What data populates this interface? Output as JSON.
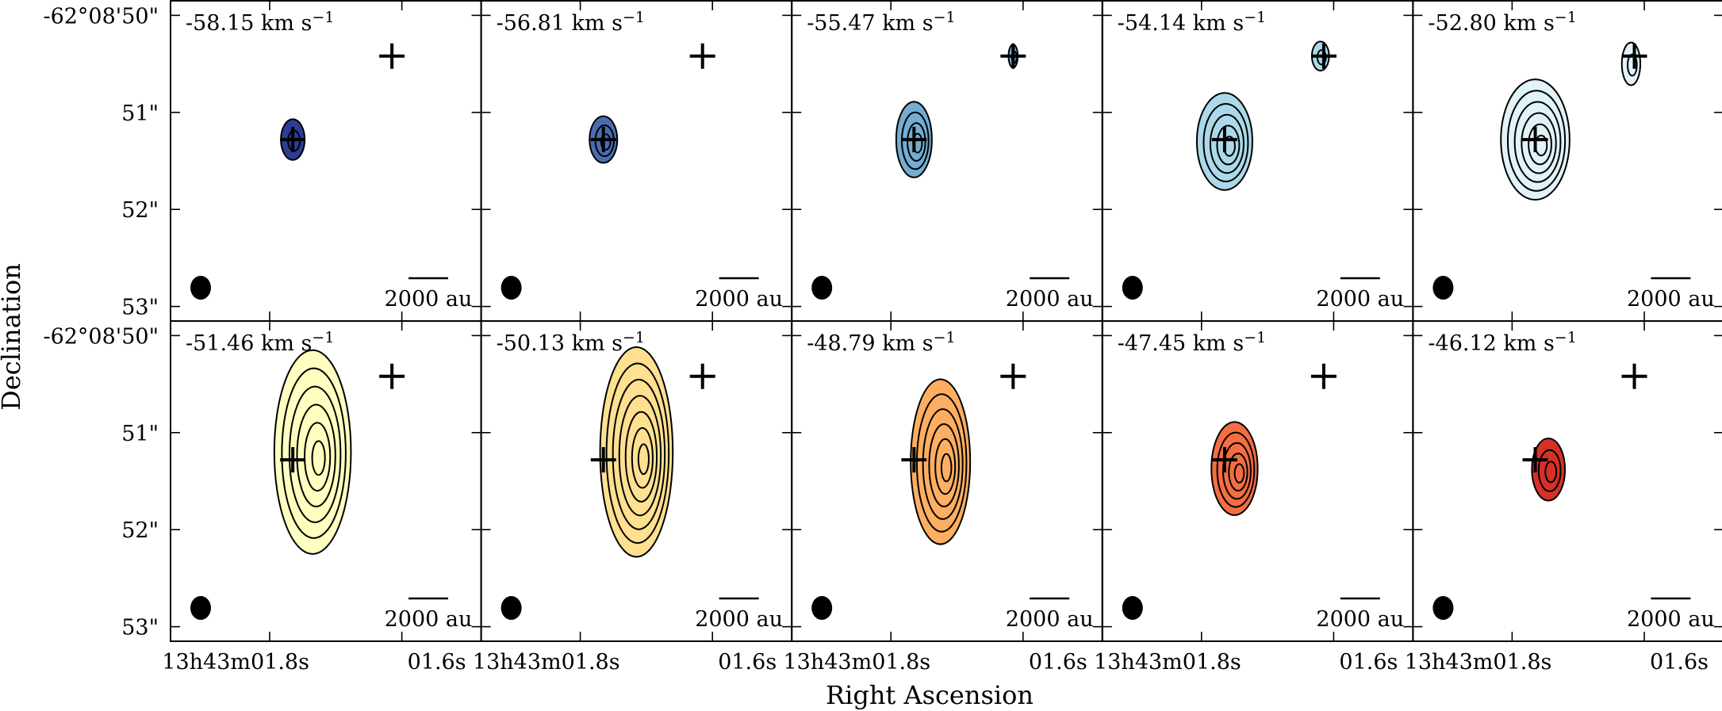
{
  "chart_data": {
    "type": "contour",
    "layout": {
      "rows": 2,
      "cols": 5
    },
    "xlabel": "Right Ascension",
    "ylabel": "Declination",
    "x_ticks": [
      {
        "label": "13h43m01.8s",
        "value": 1.8
      },
      {
        "label": "01.6s",
        "value": 1.6
      }
    ],
    "y_ticks": [
      {
        "label": "-62°08'50\"",
        "value": 50
      },
      {
        "label": "51\"",
        "value": 51
      },
      {
        "label": "52\"",
        "value": 52
      },
      {
        "label": "53\"",
        "value": 53
      }
    ],
    "x_range_seconds": [
      1.95,
      1.48
    ],
    "y_range_arcsec": [
      49.85,
      53.15
    ],
    "scale_bar_label": "2000 au",
    "markers_arcsec": [
      {
        "ra_s": 1.615,
        "dec_as": 50.42
      },
      {
        "ra_s": 1.765,
        "dec_as": 51.28
      }
    ],
    "panels": [
      {
        "velocity_label": "-58.15 km s",
        "velocity": -58.15,
        "fill": "#2d3d96",
        "contours": [
          {
            "ra": 1.765,
            "dec": 51.28,
            "rx": 0.018,
            "ry": 0.21,
            "levels": 2
          }
        ]
      },
      {
        "velocity_label": "-56.81 km s",
        "velocity": -56.81,
        "fill": "#4a6db1",
        "contours": [
          {
            "ra": 1.765,
            "dec": 51.28,
            "rx": 0.021,
            "ry": 0.24,
            "levels": 3
          }
        ]
      },
      {
        "velocity_label": "-55.47 km s",
        "velocity": -55.47,
        "fill": "#74add1",
        "contours": [
          {
            "ra": 1.765,
            "dec": 51.28,
            "rx": 0.027,
            "ry": 0.39,
            "levels": 4
          },
          {
            "ra": 1.615,
            "dec": 50.42,
            "rx": 0.007,
            "ry": 0.12,
            "levels": 2
          }
        ]
      },
      {
        "velocity_label": "-54.14 km s",
        "velocity": -54.14,
        "fill": "#abd9e9",
        "contours": [
          {
            "ra": 1.765,
            "dec": 51.3,
            "rx": 0.042,
            "ry": 0.5,
            "levels": 5
          },
          {
            "ra": 1.62,
            "dec": 50.42,
            "rx": 0.013,
            "ry": 0.15,
            "levels": 2
          }
        ]
      },
      {
        "velocity_label": "-52.80 km s",
        "velocity": -52.8,
        "fill": "#e0f3f8",
        "contours": [
          {
            "ra": 1.765,
            "dec": 51.28,
            "rx": 0.052,
            "ry": 0.62,
            "levels": 6
          },
          {
            "ra": 1.62,
            "dec": 50.5,
            "rx": 0.014,
            "ry": 0.22,
            "levels": 2
          }
        ]
      },
      {
        "velocity_label": "-51.46 km s",
        "velocity": -51.46,
        "fill": "#ffffbf",
        "contours": [
          {
            "ra": 1.735,
            "dec": 51.2,
            "rx": 0.058,
            "ry": 1.05,
            "levels": 6
          }
        ]
      },
      {
        "velocity_label": "-50.13 km s",
        "velocity": -50.13,
        "fill": "#fee090",
        "contours": [
          {
            "ra": 1.715,
            "dec": 51.2,
            "rx": 0.055,
            "ry": 1.08,
            "levels": 7
          }
        ]
      },
      {
        "velocity_label": "-48.79 km s",
        "velocity": -48.79,
        "fill": "#fdae61",
        "contours": [
          {
            "ra": 1.725,
            "dec": 51.3,
            "rx": 0.045,
            "ry": 0.85,
            "levels": 6
          }
        ]
      },
      {
        "velocity_label": "-47.45 km s",
        "velocity": -47.45,
        "fill": "#f46d43",
        "contours": [
          {
            "ra": 1.75,
            "dec": 51.37,
            "rx": 0.035,
            "ry": 0.48,
            "levels": 5
          }
        ]
      },
      {
        "velocity_label": "-46.12 km s",
        "velocity": -46.12,
        "fill": "#d73027",
        "contours": [
          {
            "ra": 1.745,
            "dec": 51.38,
            "rx": 0.025,
            "ry": 0.32,
            "levels": 3
          }
        ]
      }
    ]
  }
}
